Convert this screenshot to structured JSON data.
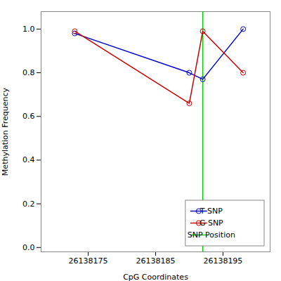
{
  "chart_data": {
    "type": "line",
    "xlabel": "CpG Coordinates",
    "ylabel": "Methylation Frequency",
    "x": [
      26138173,
      26138190,
      26138192,
      26138198
    ],
    "series": [
      {
        "name": "T SNP",
        "color": "#0000cc",
        "marker": "circle",
        "values": [
          0.98,
          0.8,
          0.77,
          1.0
        ]
      },
      {
        "name": "G SNP",
        "color": "#cc0000",
        "marker": "circle",
        "values": [
          0.99,
          0.66,
          0.99,
          0.8
        ]
      },
      {
        "name": "SNP Position",
        "type": "vline",
        "color": "#00cc00",
        "x": 26138192
      }
    ],
    "xlim": [
      26138168,
      26138202
    ],
    "ylim": [
      -0.02,
      1.08
    ],
    "xticks": [
      26138175,
      26138185,
      26138195
    ],
    "yticks": [
      {
        "value": 0.0,
        "label": "0.0"
      },
      0.2,
      0.4,
      0.6,
      0.8,
      {
        "value": 1.0,
        "label": "1.0"
      }
    ],
    "grid": false,
    "legend": "lower right"
  }
}
